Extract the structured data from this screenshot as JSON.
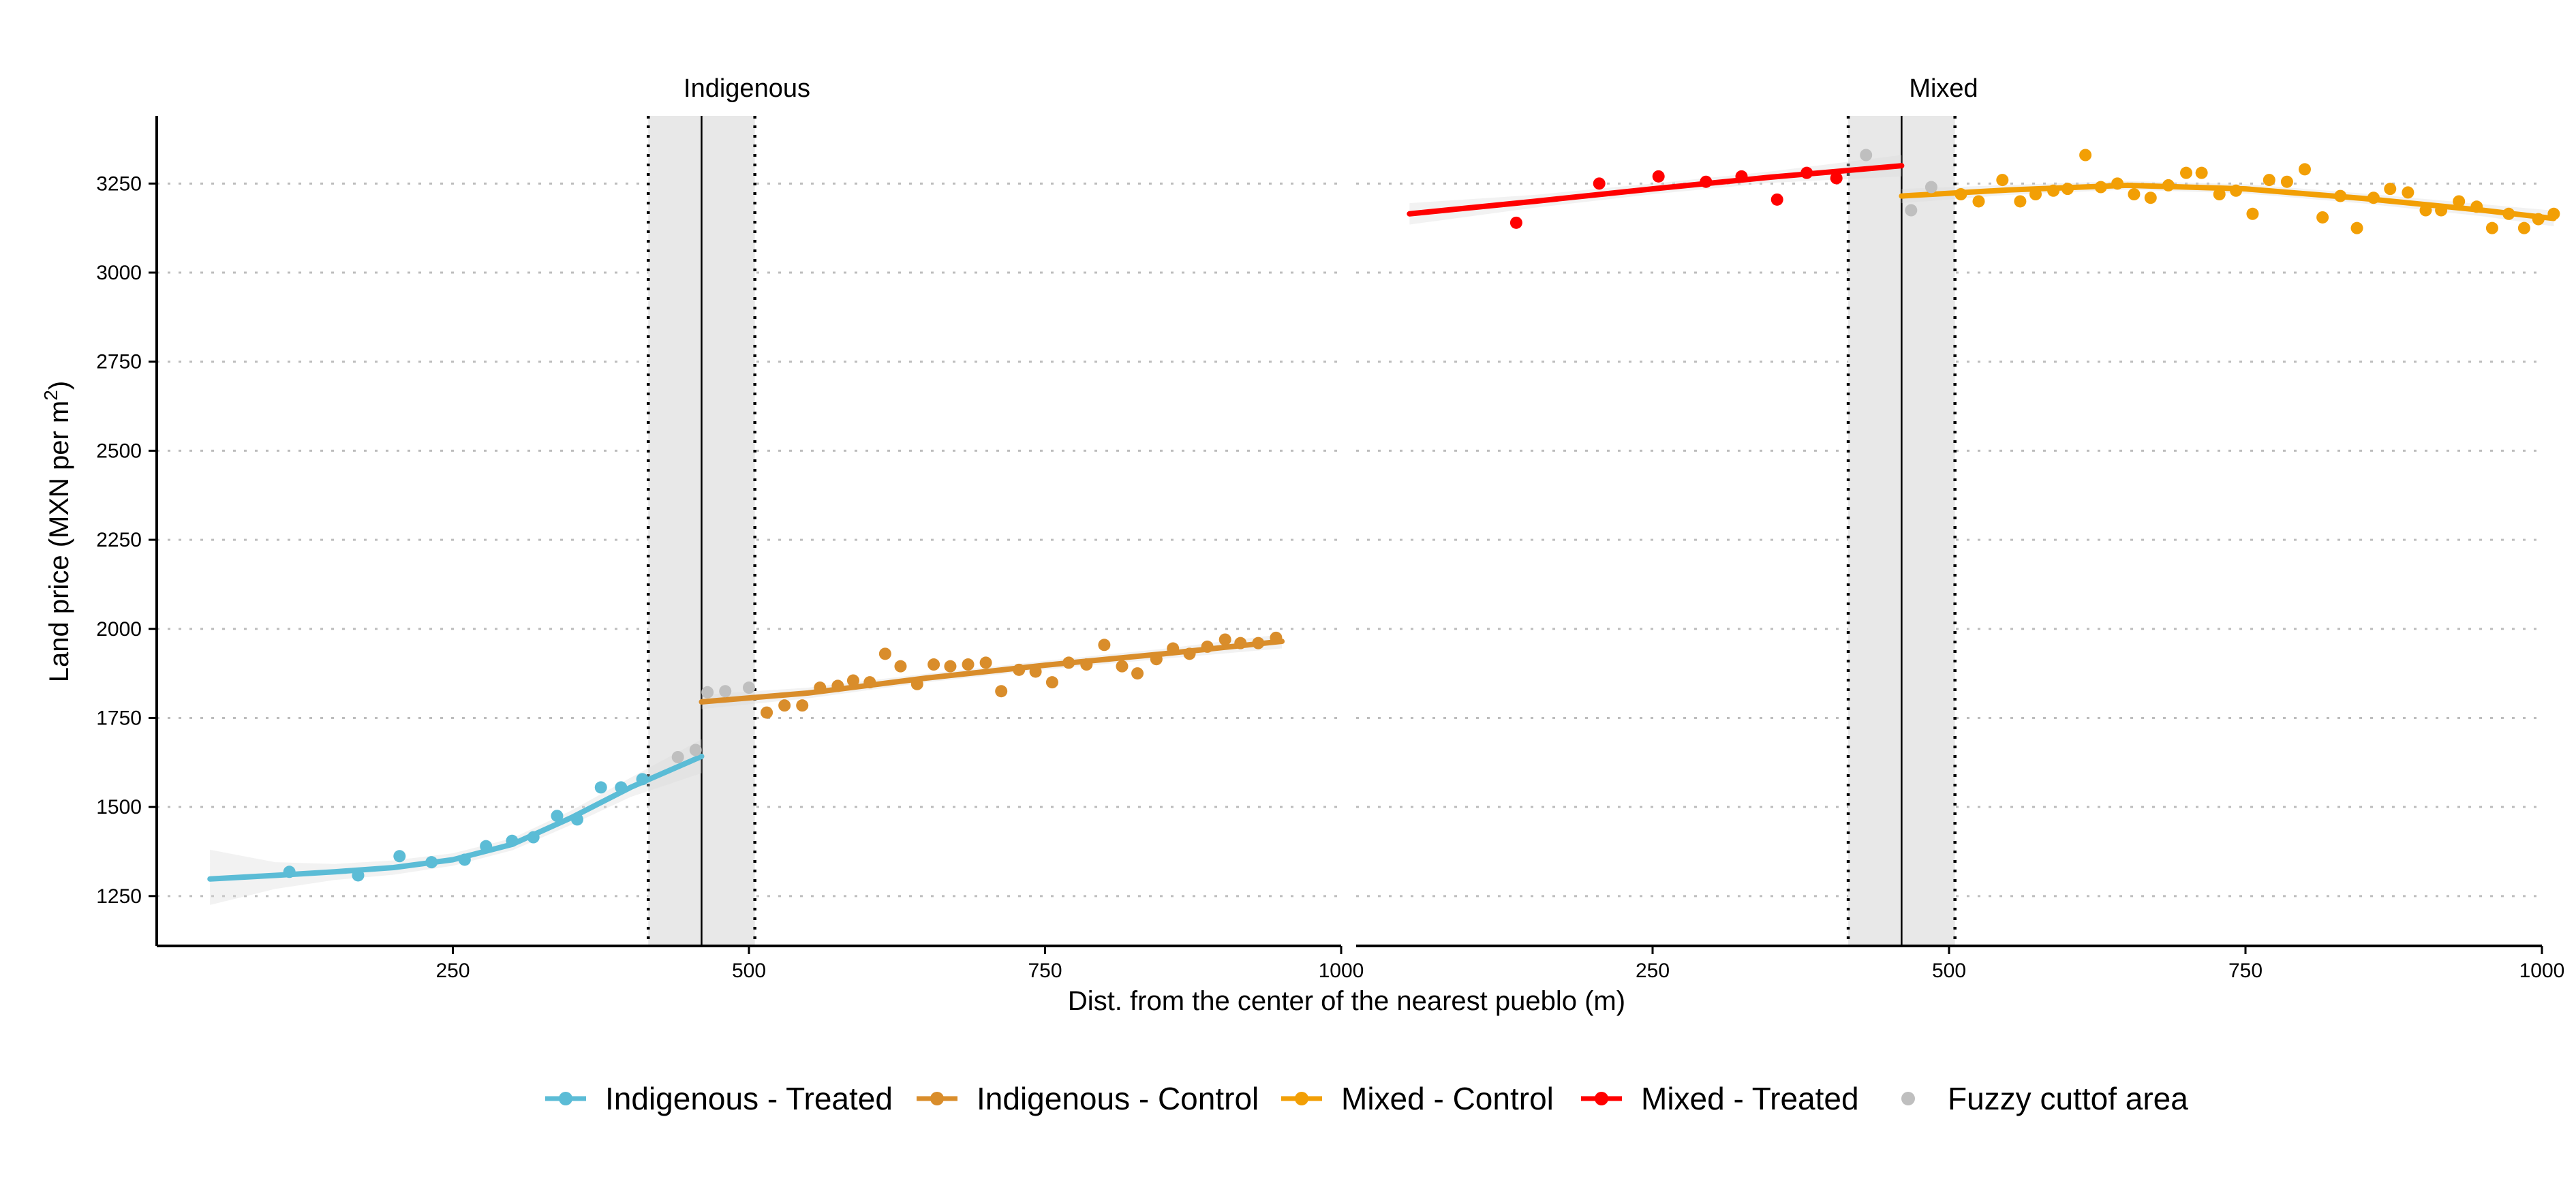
{
  "chart_data": {
    "type": "scatter",
    "ylabel": "Land price (MXN per m²)",
    "ylabel_main": "Land price (MXN per m",
    "ylabel_sup": "2",
    "ylabel_close": ")",
    "xlabel": "Dist. from the center of the nearest pueblo (m)",
    "y_ticks": [
      1250,
      1500,
      1750,
      2000,
      2250,
      2500,
      2750,
      3000,
      3250
    ],
    "y_tick_labels": [
      "1250",
      "1500",
      "1750",
      "2000",
      "2250",
      "2500",
      "2750",
      "3000",
      "3250"
    ],
    "ylim": [
      1110,
      3440
    ],
    "xlim": [
      0,
      1000
    ],
    "x_ticks": [
      250,
      500,
      750,
      1000
    ],
    "x_tick_labels": [
      "250",
      "500",
      "750",
      "1000"
    ],
    "grid": "horizontal dotted",
    "legend_position": "bottom",
    "legend": [
      {
        "label": "Indigenous - Treated",
        "color": "#5bbcd6",
        "kind": "line-point"
      },
      {
        "label": "Indigenous - Control",
        "color": "#d98d2b",
        "kind": "line-point"
      },
      {
        "label": "Mixed - Control",
        "color": "#f29f05",
        "kind": "line-point"
      },
      {
        "label": "Mixed - Treated",
        "color": "#ff0000",
        "kind": "line-point"
      },
      {
        "label": "Fuzzy cuttof area",
        "color": "#bfbfbf",
        "kind": "point"
      }
    ],
    "panels": [
      {
        "title": "Indigenous",
        "cutoff": 460,
        "fuzzy_band": [
          415,
          505
        ],
        "series": [
          {
            "name": "Indigenous - Treated",
            "color": "#5bbcd6",
            "points": [
              [
                112,
                1318
              ],
              [
                170,
                1308
              ],
              [
                205,
                1362
              ],
              [
                232,
                1345
              ],
              [
                260,
                1352
              ],
              [
                278,
                1390
              ],
              [
                300,
                1405
              ],
              [
                318,
                1415
              ],
              [
                338,
                1475
              ],
              [
                355,
                1465
              ],
              [
                375,
                1555
              ],
              [
                392,
                1555
              ],
              [
                410,
                1578
              ]
            ],
            "fit": [
              [
                45,
                1298
              ],
              [
                100,
                1308
              ],
              [
                150,
                1318
              ],
              [
                200,
                1330
              ],
              [
                250,
                1352
              ],
              [
                300,
                1395
              ],
              [
                350,
                1470
              ],
              [
                400,
                1555
              ],
              [
                460,
                1642
              ]
            ],
            "band": [
              [
                45,
                1225,
                1380
              ],
              [
                100,
                1270,
                1345
              ],
              [
                150,
                1295,
                1340
              ],
              [
                200,
                1310,
                1350
              ],
              [
                250,
                1335,
                1370
              ],
              [
                300,
                1378,
                1412
              ],
              [
                350,
                1450,
                1490
              ],
              [
                400,
                1528,
                1582
              ],
              [
                460,
                1595,
                1690
              ]
            ]
          },
          {
            "name": "Indigenous - Control",
            "color": "#d98d2b",
            "points": [
              [
                515,
                1765
              ],
              [
                530,
                1785
              ],
              [
                545,
                1785
              ],
              [
                560,
                1835
              ],
              [
                575,
                1840
              ],
              [
                588,
                1855
              ],
              [
                602,
                1850
              ],
              [
                615,
                1930
              ],
              [
                628,
                1895
              ],
              [
                642,
                1845
              ],
              [
                656,
                1900
              ],
              [
                670,
                1895
              ],
              [
                685,
                1900
              ],
              [
                700,
                1905
              ],
              [
                713,
                1825
              ],
              [
                728,
                1885
              ],
              [
                742,
                1880
              ],
              [
                756,
                1850
              ],
              [
                770,
                1905
              ],
              [
                785,
                1900
              ],
              [
                800,
                1955
              ],
              [
                815,
                1895
              ],
              [
                828,
                1875
              ],
              [
                844,
                1915
              ],
              [
                858,
                1945
              ],
              [
                872,
                1930
              ],
              [
                887,
                1950
              ],
              [
                902,
                1970
              ],
              [
                915,
                1960
              ],
              [
                930,
                1960
              ],
              [
                945,
                1975
              ]
            ],
            "fit": [
              [
                460,
                1795
              ],
              [
                550,
                1820
              ],
              [
                650,
                1862
              ],
              [
                750,
                1898
              ],
              [
                850,
                1930
              ],
              [
                950,
                1965
              ]
            ],
            "band": [
              [
                460,
                1775,
                1815
              ],
              [
                550,
                1805,
                1835
              ],
              [
                650,
                1850,
                1874
              ],
              [
                750,
                1886,
                1910
              ],
              [
                850,
                1916,
                1944
              ],
              [
                950,
                1945,
                1985
              ]
            ]
          },
          {
            "name": "Fuzzy cuttof area",
            "color": "#bfbfbf",
            "points": [
              [
                440,
                1640
              ],
              [
                455,
                1660
              ],
              [
                480,
                1825
              ],
              [
                500,
                1835
              ],
              [
                465,
                1822
              ]
            ]
          }
        ]
      },
      {
        "title": "Mixed",
        "cutoff": 460,
        "fuzzy_band": [
          415,
          505
        ],
        "series": [
          {
            "name": "Mixed - Treated",
            "color": "#ff0000",
            "points": [
              [
                135,
                3140
              ],
              [
                205,
                3250
              ],
              [
                255,
                3270
              ],
              [
                295,
                3255
              ],
              [
                325,
                3270
              ],
              [
                355,
                3205
              ],
              [
                380,
                3280
              ],
              [
                405,
                3265
              ]
            ],
            "fit": [
              [
                45,
                3165
              ],
              [
                150,
                3200
              ],
              [
                250,
                3235
              ],
              [
                350,
                3268
              ],
              [
                460,
                3300
              ]
            ],
            "band": [
              [
                45,
                3135,
                3195
              ],
              [
                150,
                3182,
                3218
              ],
              [
                250,
                3220,
                3250
              ],
              [
                350,
                3252,
                3284
              ],
              [
                460,
                3270,
                3330
              ]
            ]
          },
          {
            "name": "Mixed - Control",
            "color": "#f29f05",
            "points": [
              [
                510,
                3220
              ],
              [
                525,
                3200
              ],
              [
                545,
                3260
              ],
              [
                560,
                3200
              ],
              [
                573,
                3220
              ],
              [
                588,
                3230
              ],
              [
                600,
                3235
              ],
              [
                615,
                3330
              ],
              [
                628,
                3240
              ],
              [
                642,
                3250
              ],
              [
                656,
                3220
              ],
              [
                670,
                3210
              ],
              [
                685,
                3245
              ],
              [
                700,
                3280
              ],
              [
                713,
                3280
              ],
              [
                728,
                3220
              ],
              [
                742,
                3230
              ],
              [
                756,
                3165
              ],
              [
                770,
                3260
              ],
              [
                785,
                3255
              ],
              [
                800,
                3290
              ],
              [
                815,
                3155
              ],
              [
                830,
                3215
              ],
              [
                844,
                3125
              ],
              [
                858,
                3210
              ],
              [
                872,
                3235
              ],
              [
                887,
                3225
              ],
              [
                902,
                3175
              ],
              [
                915,
                3175
              ],
              [
                930,
                3200
              ],
              [
                945,
                3185
              ],
              [
                958,
                3125
              ],
              [
                972,
                3165
              ],
              [
                985,
                3125
              ],
              [
                997,
                3150
              ],
              [
                1010,
                3165
              ]
            ],
            "fit": [
              [
                460,
                3215
              ],
              [
                550,
                3232
              ],
              [
                650,
                3245
              ],
              [
                750,
                3235
              ],
              [
                850,
                3208
              ],
              [
                950,
                3175
              ],
              [
                1010,
                3152
              ]
            ],
            "band": [
              [
                460,
                3195,
                3235
              ],
              [
                550,
                3218,
                3246
              ],
              [
                650,
                3233,
                3257
              ],
              [
                750,
                3222,
                3248
              ],
              [
                850,
                3194,
                3222
              ],
              [
                950,
                3158,
                3192
              ],
              [
                1010,
                3130,
                3174
              ]
            ]
          },
          {
            "name": "Fuzzy cuttof area",
            "color": "#bfbfbf",
            "points": [
              [
                430,
                3330
              ],
              [
                468,
                3175
              ],
              [
                485,
                3240
              ]
            ]
          }
        ]
      }
    ]
  }
}
